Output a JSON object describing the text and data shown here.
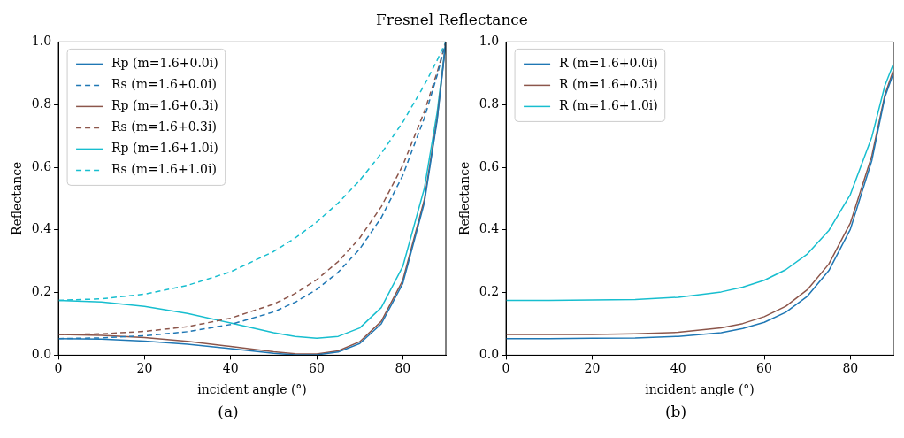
{
  "chart_data": [
    {
      "type": "line",
      "title": "Fresnel Reflectance",
      "xlabel": "incident angle (°)",
      "ylabel": "Reflectance",
      "annotations": [
        "(a)"
      ],
      "x": [
        0,
        10,
        20,
        30,
        40,
        50,
        55,
        60,
        65,
        70,
        75,
        80,
        85,
        88,
        90
      ],
      "xlim": [
        0,
        90
      ],
      "xticks": [
        0,
        20,
        40,
        60,
        80
      ],
      "ylim": [
        0,
        1
      ],
      "yticks": [
        {
          "value": 0,
          "label": "0.0"
        },
        {
          "value": 0.2,
          "label": "0.2"
        },
        {
          "value": 0.4,
          "label": "0.4"
        },
        {
          "value": 0.6,
          "label": "0.6"
        },
        {
          "value": 0.8,
          "label": "0.8"
        },
        {
          "value": 1,
          "label": "1.0"
        }
      ],
      "grid": false,
      "legend": "top left",
      "marker": "none",
      "series": [
        {
          "name": "Rp (m=1.6+0.0i)",
          "color": "#1f77b4",
          "line_style": "solid",
          "values": [
            0.053,
            0.051,
            0.045,
            0.035,
            0.021,
            0.006,
            0.001,
            0.001,
            0.01,
            0.037,
            0.1,
            0.229,
            0.486,
            0.751,
            1
          ]
        },
        {
          "name": "Rs (m=1.6+0.0i)",
          "color": "#1f77b4",
          "line_style": "dashed",
          "values": [
            0.053,
            0.055,
            0.062,
            0.075,
            0.098,
            0.138,
            0.169,
            0.21,
            0.265,
            0.339,
            0.439,
            0.574,
            0.757,
            0.894,
            1
          ]
        },
        {
          "name": "Rp (m=1.6+0.3i)",
          "color": "#8c564b",
          "line_style": "solid",
          "values": [
            0.066,
            0.063,
            0.056,
            0.044,
            0.028,
            0.011,
            0.005,
            0.004,
            0.014,
            0.043,
            0.108,
            0.239,
            0.496,
            0.757,
            1
          ]
        },
        {
          "name": "Rs (m=1.6+0.3i)",
          "color": "#8c564b",
          "line_style": "dashed",
          "values": [
            0.066,
            0.068,
            0.076,
            0.091,
            0.118,
            0.163,
            0.197,
            0.241,
            0.299,
            0.374,
            0.474,
            0.606,
            0.777,
            0.904,
            1
          ]
        },
        {
          "name": "Rp (m=1.6+1.0i)",
          "color": "#17becf",
          "line_style": "solid",
          "values": [
            0.175,
            0.17,
            0.156,
            0.133,
            0.103,
            0.072,
            0.06,
            0.054,
            0.06,
            0.087,
            0.152,
            0.283,
            0.532,
            0.777,
            1
          ]
        },
        {
          "name": "Rs (m=1.6+1.0i)",
          "color": "#17becf",
          "line_style": "dashed",
          "values": [
            0.175,
            0.18,
            0.195,
            0.223,
            0.266,
            0.331,
            0.374,
            0.425,
            0.486,
            0.558,
            0.644,
            0.744,
            0.862,
            0.942,
            1
          ]
        }
      ]
    },
    {
      "type": "line",
      "xlabel": "incident angle (°)",
      "ylabel": "Reflectance",
      "annotations": [
        "(b)"
      ],
      "x": [
        0,
        10,
        20,
        30,
        40,
        50,
        55,
        60,
        65,
        70,
        75,
        80,
        85,
        88,
        90
      ],
      "xlim": [
        0,
        90
      ],
      "xticks": [
        0,
        20,
        40,
        60,
        80
      ],
      "ylim": [
        0,
        1
      ],
      "yticks": [
        {
          "value": 0,
          "label": "0.0"
        },
        {
          "value": 0.2,
          "label": "0.2"
        },
        {
          "value": 0.4,
          "label": "0.4"
        },
        {
          "value": 0.6,
          "label": "0.6"
        },
        {
          "value": 0.8,
          "label": "0.8"
        },
        {
          "value": 1,
          "label": "1.0"
        }
      ],
      "grid": false,
      "legend": "top left",
      "marker": "none",
      "series": [
        {
          "name": "R (m=1.6+0.0i)",
          "color": "#1f77b4",
          "line_style": "solid",
          "values": [
            0.053,
            0.053,
            0.054,
            0.055,
            0.06,
            0.072,
            0.085,
            0.105,
            0.137,
            0.188,
            0.27,
            0.402,
            0.622,
            0.823,
            0.9
          ]
        },
        {
          "name": "R (m=1.6+0.3i)",
          "color": "#8c564b",
          "line_style": "solid",
          "values": [
            0.066,
            0.066,
            0.066,
            0.068,
            0.073,
            0.087,
            0.101,
            0.123,
            0.156,
            0.209,
            0.291,
            0.422,
            0.637,
            0.83,
            0.91
          ]
        },
        {
          "name": "R (m=1.6+1.0i)",
          "color": "#17becf",
          "line_style": "solid",
          "values": [
            0.175,
            0.175,
            0.176,
            0.178,
            0.185,
            0.202,
            0.217,
            0.239,
            0.273,
            0.323,
            0.398,
            0.513,
            0.697,
            0.86,
            0.93
          ]
        }
      ]
    }
  ]
}
